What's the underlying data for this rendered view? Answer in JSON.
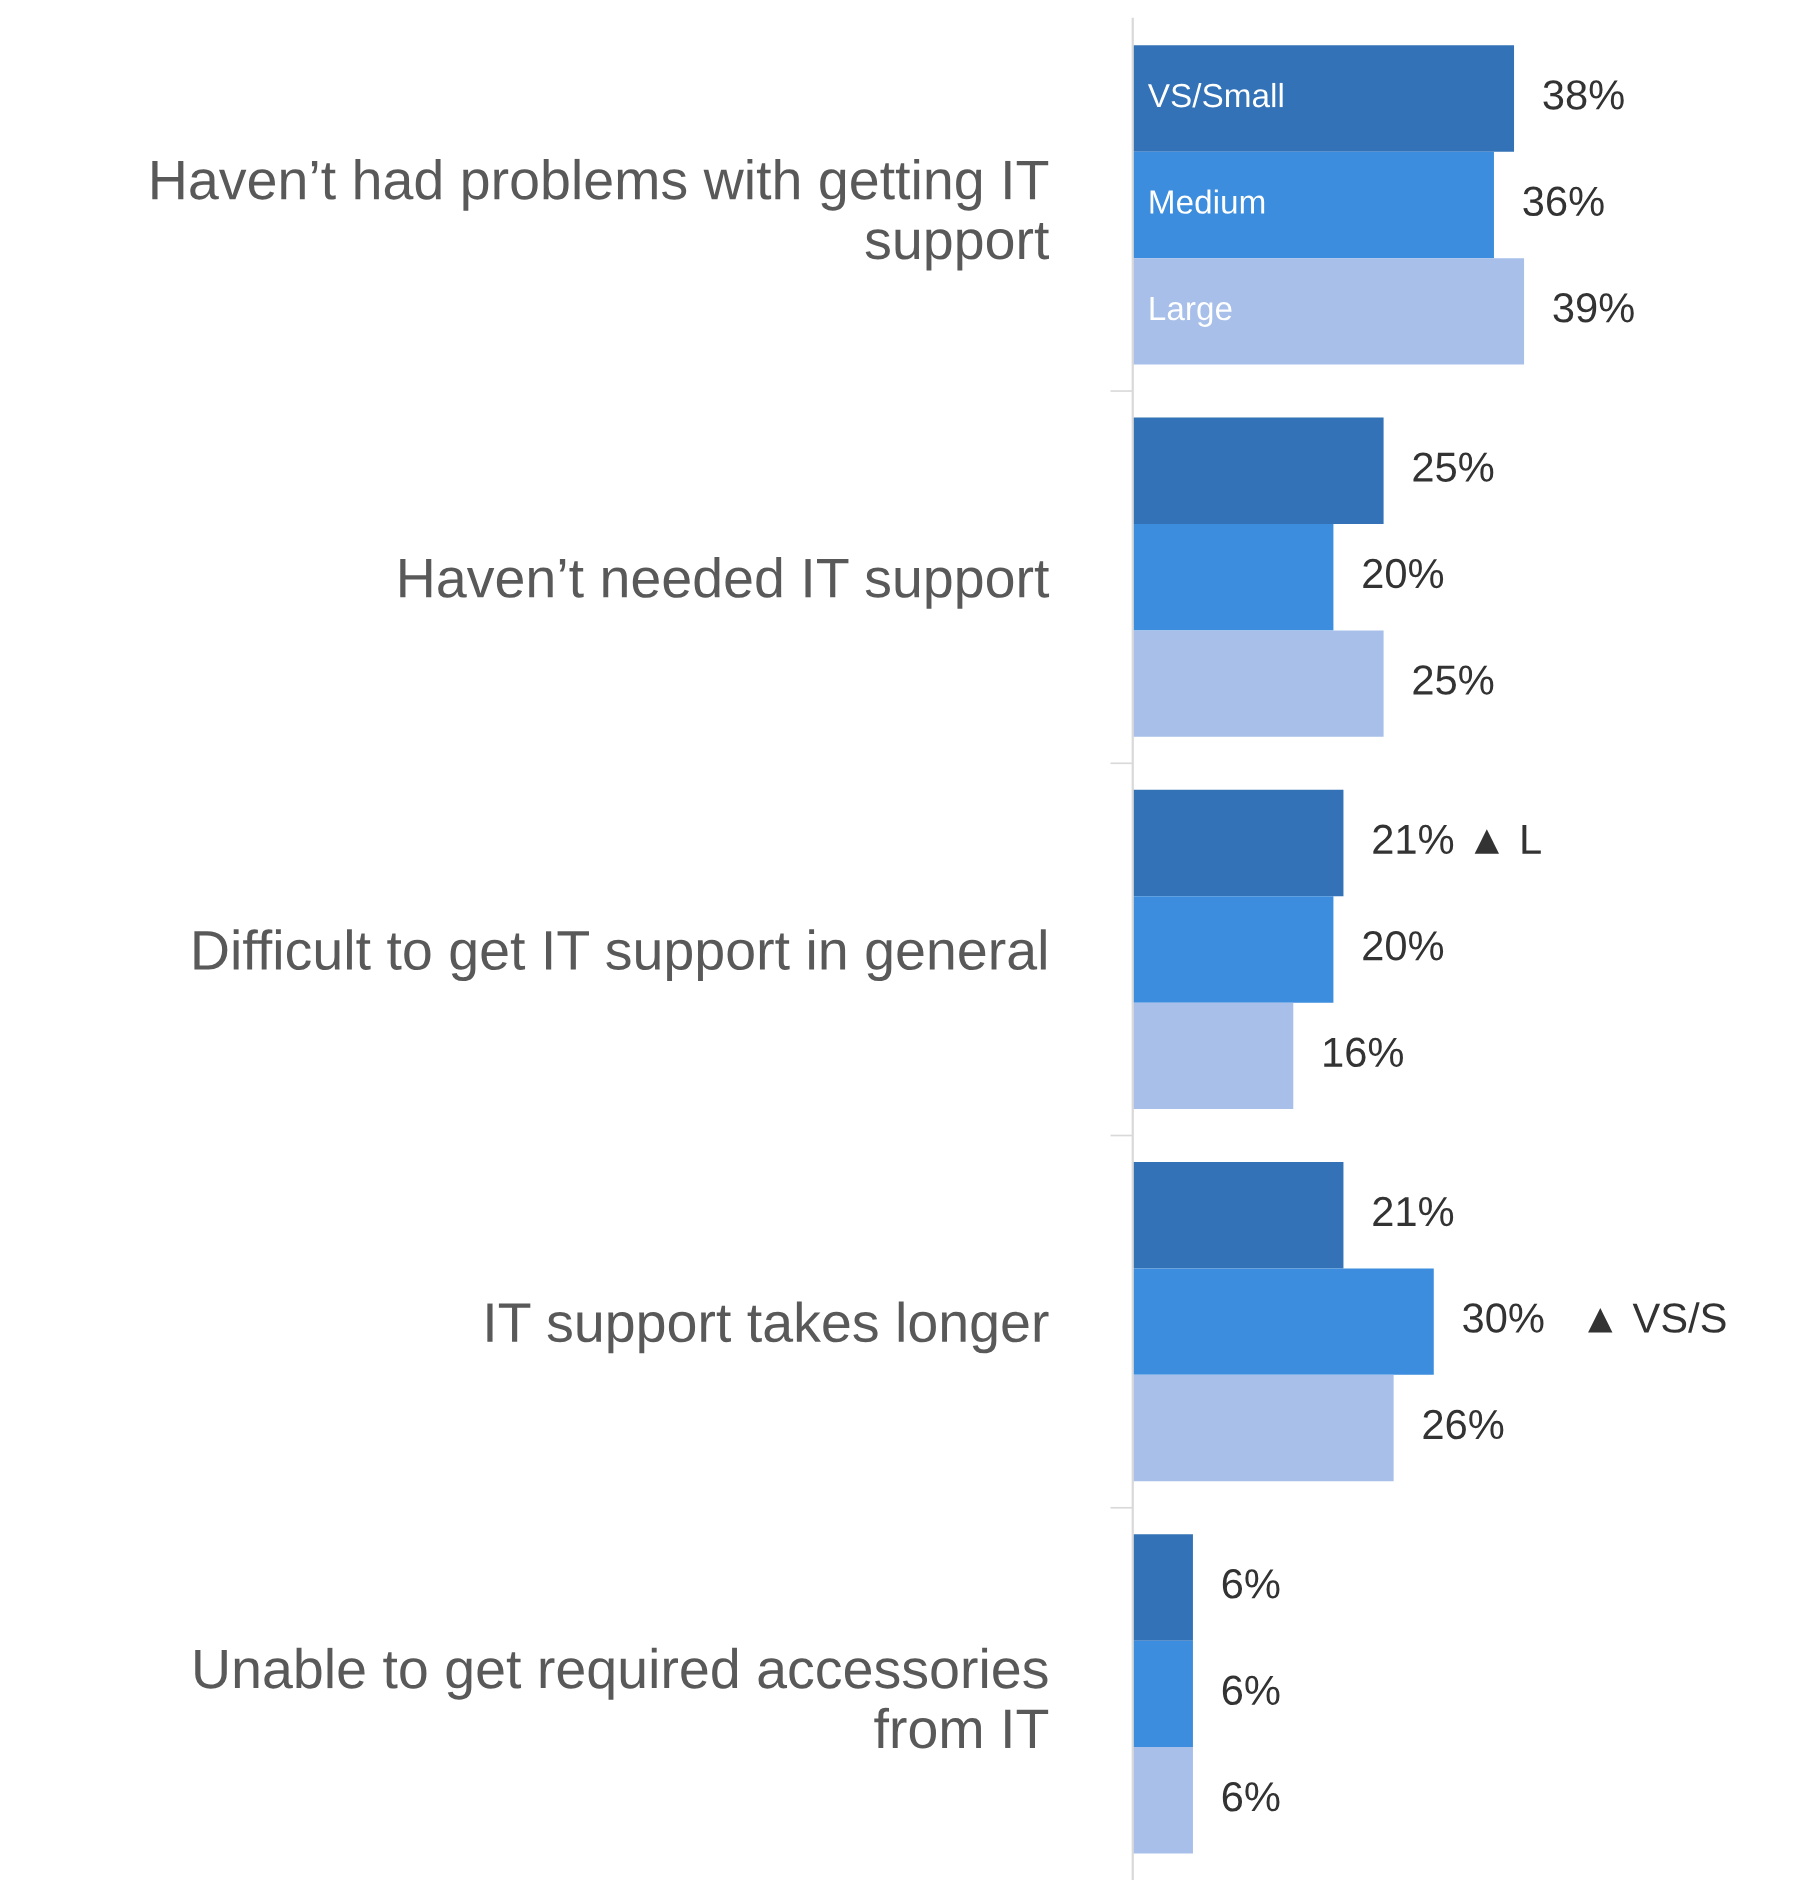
{
  "chart_data": {
    "type": "bar",
    "orientation": "horizontal",
    "categories": [
      "Haven’t had problems with getting IT\nsupport",
      "Haven’t needed IT support",
      "Difficult to get IT support in general",
      "IT support takes longer",
      "Unable to get required accessories\nfrom IT"
    ],
    "series": [
      {
        "name": "VS/Small",
        "color": "#3372b6",
        "values": [
          38,
          25,
          21,
          21,
          6
        ],
        "value_labels": [
          "38%",
          "25%",
          "21% ▲ L",
          "21%",
          "6%"
        ]
      },
      {
        "name": "Medium",
        "color": "#3c8ddd",
        "values": [
          36,
          20,
          20,
          30,
          6
        ],
        "value_labels": [
          "36%",
          "20%",
          "20%",
          "30%   ▲ VS/S",
          "6%"
        ]
      },
      {
        "name": "Large",
        "color": "#a7bfe9",
        "values": [
          39,
          25,
          16,
          26,
          6
        ],
        "value_labels": [
          "39%",
          "25%",
          "16%",
          "26%",
          "6%"
        ]
      }
    ],
    "grid": false
  }
}
